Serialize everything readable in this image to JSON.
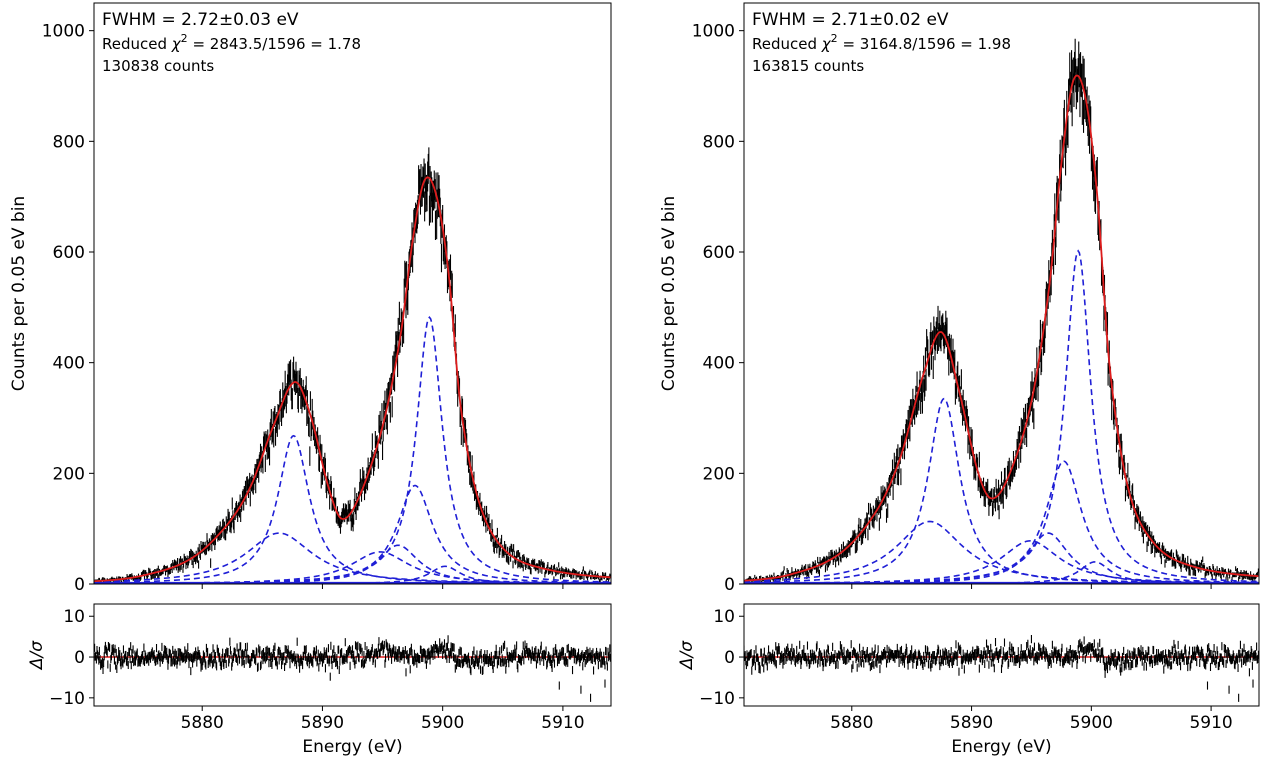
{
  "chart_data": [
    {
      "type": "line",
      "panel": "left",
      "annotations": {
        "fwhm": "FWHM = 2.72±0.03 eV",
        "chi2_prefix": "Reduced ",
        "chi2_suffix": " = 2843.5/1596 = 1.78",
        "counts": "130838 counts"
      },
      "ylabel": "Counts per 0.05 eV bin",
      "xlabel": "Energy   (eV)",
      "residual_ylabel": "Δ/σ",
      "xlim": [
        5871,
        5914
      ],
      "ylim": [
        0,
        1050
      ],
      "residual_ylim": [
        -12,
        13
      ],
      "x_ticks": [
        5880,
        5890,
        5900,
        5910
      ],
      "y_ticks": [
        0,
        200,
        400,
        600,
        800,
        1000
      ],
      "residual_y_ticks": [
        -10,
        0,
        10
      ],
      "data_color": "#000000",
      "fit_color": "#dd1c1c",
      "component_color": "#1f1fd6",
      "baseline_color": "#1f1fd6",
      "total_fit": {
        "x": [
          5871,
          5875,
          5879,
          5882,
          5884,
          5886,
          5887.7,
          5889,
          5890.5,
          5891.6,
          5893,
          5895,
          5896.5,
          5897.5,
          5898.5,
          5899.5,
          5900.5,
          5901.5,
          5903,
          5905,
          5908,
          5914
        ],
        "y": [
          5,
          15,
          45,
          105,
          175,
          290,
          365,
          305,
          175,
          118,
          155,
          285,
          450,
          620,
          730,
          700,
          560,
          320,
          150,
          65,
          30,
          12
        ]
      },
      "components": [
        {
          "x0": 5887.6,
          "amp": 268,
          "fwhm": 3.2
        },
        {
          "x0": 5886.4,
          "amp": 92,
          "fwhm": 6.8
        },
        {
          "x0": 5898.9,
          "amp": 482,
          "fwhm": 2.6
        },
        {
          "x0": 5897.7,
          "amp": 178,
          "fwhm": 3.6
        },
        {
          "x0": 5896.3,
          "amp": 70,
          "fwhm": 4.2
        },
        {
          "x0": 5894.8,
          "amp": 58,
          "fwhm": 6.0
        },
        {
          "x0": 5900.2,
          "amp": 32,
          "fwhm": 3.2
        }
      ]
    },
    {
      "type": "line",
      "panel": "right",
      "annotations": {
        "fwhm": "FWHM = 2.71±0.02 eV",
        "chi2_prefix": "Reduced ",
        "chi2_suffix": " = 3164.8/1596 = 1.98",
        "counts": "163815 counts"
      },
      "ylabel": "Counts per 0.05 eV bin",
      "xlabel": "Energy   (eV)",
      "residual_ylabel": "Δ/σ",
      "xlim": [
        5871,
        5914
      ],
      "ylim": [
        0,
        1050
      ],
      "residual_ylim": [
        -12,
        13
      ],
      "x_ticks": [
        5880,
        5890,
        5900,
        5910
      ],
      "y_ticks": [
        0,
        200,
        400,
        600,
        800,
        1000
      ],
      "residual_y_ticks": [
        -10,
        0,
        10
      ],
      "data_color": "#000000",
      "fit_color": "#dd1c1c",
      "component_color": "#1f1fd6",
      "baseline_color": "#1f1fd6",
      "total_fit": {
        "x": [
          5871,
          5875,
          5879,
          5882,
          5884,
          5886,
          5887.5,
          5889,
          5890.5,
          5891.6,
          5893,
          5895,
          5896.5,
          5897.5,
          5898.5,
          5899.5,
          5900.5,
          5901.5,
          5903,
          5905,
          5908,
          5914
        ],
        "y": [
          6,
          18,
          55,
          130,
          225,
          380,
          455,
          345,
          205,
          155,
          190,
          330,
          540,
          760,
          910,
          880,
          700,
          400,
          180,
          80,
          35,
          14
        ]
      },
      "components": [
        {
          "x0": 5887.7,
          "amp": 335,
          "fwhm": 3.2
        },
        {
          "x0": 5886.5,
          "amp": 113,
          "fwhm": 6.8
        },
        {
          "x0": 5898.9,
          "amp": 602,
          "fwhm": 2.6
        },
        {
          "x0": 5897.7,
          "amp": 222,
          "fwhm": 3.6
        },
        {
          "x0": 5896.4,
          "amp": 92,
          "fwhm": 4.2
        },
        {
          "x0": 5894.9,
          "amp": 78,
          "fwhm": 6.0
        },
        {
          "x0": 5900.3,
          "amp": 40,
          "fwhm": 3.2
        }
      ]
    }
  ]
}
